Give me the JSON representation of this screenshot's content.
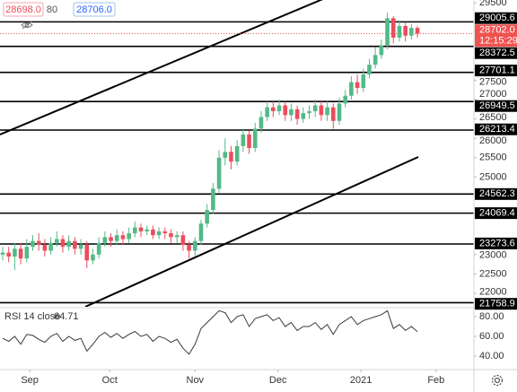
{
  "header": {
    "bid": "28698.0",
    "spread": "80",
    "ask": "28706.0"
  },
  "chart_data": [
    {
      "type": "candlestick",
      "open": [
        23000,
        23050,
        22950,
        23150,
        22900,
        23200,
        23350,
        23250,
        23100,
        23300,
        23400,
        23200,
        23350,
        23150,
        23250,
        22850,
        23000,
        23300,
        23450,
        23350,
        23500,
        23400,
        23550,
        23700,
        23600,
        23650,
        23500,
        23600,
        23550,
        23450,
        23500,
        23250,
        23100,
        23350,
        23800,
        24150,
        24700,
        25500,
        25650,
        25400,
        25800,
        26100,
        25750,
        26250,
        26550,
        26800,
        26700,
        26850,
        26600,
        26750,
        26500,
        26650,
        26700,
        26850,
        26600,
        26800,
        26450,
        26900,
        27100,
        27450,
        27300,
        27650,
        27900,
        28150,
        28400,
        29100,
        28600,
        28900,
        28650,
        28850
      ],
      "high": [
        23200,
        23200,
        23300,
        23300,
        23400,
        23500,
        23550,
        23400,
        23450,
        23600,
        23500,
        23500,
        23450,
        23400,
        23350,
        23150,
        23450,
        23600,
        23550,
        23650,
        23600,
        23700,
        23850,
        23800,
        23750,
        23750,
        23700,
        23700,
        23650,
        23600,
        23600,
        23350,
        23450,
        23900,
        24300,
        24850,
        25700,
        26000,
        25800,
        25950,
        26250,
        26200,
        26400,
        26700,
        26950,
        26950,
        27000,
        26950,
        26900,
        26850,
        26800,
        26850,
        27000,
        26950,
        26950,
        26900,
        27050,
        27250,
        27600,
        27650,
        27800,
        28050,
        28350,
        28550,
        29250,
        29150,
        29050,
        29000,
        28950,
        28900
      ],
      "low": [
        22850,
        22800,
        22600,
        22750,
        22800,
        23100,
        23100,
        22950,
        23000,
        23200,
        23050,
        23100,
        23000,
        23000,
        22650,
        22750,
        22900,
        23200,
        23200,
        23250,
        23250,
        23300,
        23450,
        23450,
        23500,
        23400,
        23400,
        23400,
        23300,
        23300,
        23100,
        22900,
        22950,
        23250,
        23700,
        24050,
        24600,
        25300,
        25200,
        25300,
        25650,
        25600,
        25650,
        26150,
        26450,
        26550,
        26600,
        26450,
        26450,
        26350,
        26400,
        26500,
        26550,
        26450,
        26450,
        26250,
        26350,
        26800,
        27000,
        27150,
        27200,
        27550,
        27800,
        28050,
        28300,
        28450,
        28500,
        28500,
        28550,
        28600
      ],
      "close": [
        23050,
        22950,
        23150,
        22900,
        23200,
        23350,
        23250,
        23100,
        23300,
        23400,
        23200,
        23350,
        23150,
        23250,
        22850,
        23000,
        23300,
        23450,
        23350,
        23500,
        23400,
        23550,
        23700,
        23600,
        23650,
        23500,
        23600,
        23550,
        23450,
        23500,
        23250,
        23100,
        23350,
        23800,
        24150,
        24700,
        25500,
        25650,
        25400,
        25800,
        26100,
        25750,
        26250,
        26550,
        26800,
        26700,
        26850,
        26600,
        26750,
        26500,
        26650,
        26700,
        26850,
        26600,
        26800,
        26450,
        26900,
        27100,
        27450,
        27300,
        27650,
        27900,
        28150,
        28400,
        29100,
        28600,
        28900,
        28650,
        28850,
        28702
      ],
      "up_color": "#53b987",
      "down_color": "#eb4d5c",
      "xlim": [
        -0.45,
        78.4
      ],
      "ylim": [
        21653,
        29570
      ],
      "yticks": [
        29500,
        27500,
        27000,
        26500,
        26000,
        25500,
        25000,
        23000,
        22500,
        22000
      ],
      "xticks": [
        {
          "value": 4.5,
          "label": "Sep"
        },
        {
          "value": 17.8,
          "label": "Oct"
        },
        {
          "value": 32,
          "label": "Nov"
        },
        {
          "value": 45.8,
          "label": "Dec"
        },
        {
          "value": 59.6,
          "label": "2021"
        },
        {
          "value": 72.1,
          "label": "Feb"
        }
      ],
      "levels": [
        29005.6,
        28372.5,
        27701.1,
        26949.5,
        26213.4,
        24562.3,
        24069.4,
        23273.6,
        21758.9
      ],
      "level_color": "#000000",
      "last_price": {
        "value": 28702,
        "label": "28702.0"
      },
      "last_price_color": "#ef5350",
      "countdown": "12:15:29"
    },
    {
      "type": "line",
      "title": "RSI 14 close",
      "values": [
        58,
        55,
        60,
        52,
        62,
        61,
        57,
        54,
        60,
        63,
        55,
        60,
        56,
        58,
        45,
        52,
        60,
        64,
        59,
        63,
        58,
        62,
        65,
        60,
        62,
        55,
        60,
        58,
        54,
        57,
        48,
        42,
        52,
        68,
        74,
        80,
        86,
        84,
        74,
        80,
        82,
        70,
        78,
        80,
        82,
        76,
        79,
        70,
        74,
        66,
        70,
        70,
        74,
        67,
        72,
        62,
        72,
        76,
        80,
        72,
        76,
        78,
        80,
        82,
        86,
        68,
        72,
        66,
        70,
        64.71
      ],
      "color": "#3a3a3a",
      "ylim": [
        28.2,
        87.3
      ],
      "yticks": [
        {
          "value": 80,
          "label": "80.00"
        },
        {
          "value": 60,
          "label": "60.00"
        },
        {
          "value": 40,
          "label": "40.00"
        }
      ]
    }
  ]
}
